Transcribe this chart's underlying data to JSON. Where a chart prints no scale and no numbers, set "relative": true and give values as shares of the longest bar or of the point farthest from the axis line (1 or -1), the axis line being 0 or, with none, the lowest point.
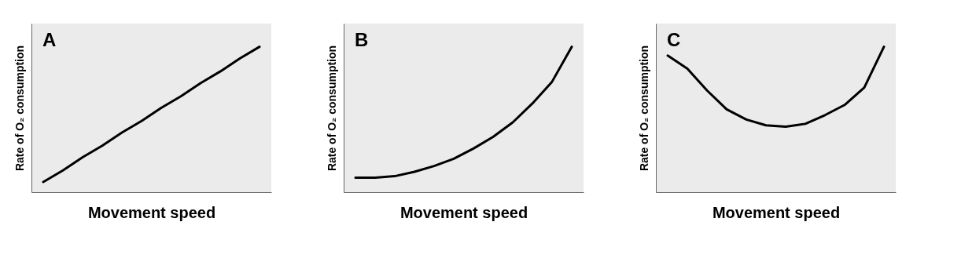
{
  "chart_data": [
    {
      "type": "line",
      "title": "A",
      "xlabel": "Movement speed",
      "ylabel": "Rate of O₂ consumption",
      "relative": true,
      "line_style": "solid",
      "categories": [
        null,
        null,
        null,
        null,
        null,
        null,
        null,
        null,
        null,
        null,
        null,
        null
      ],
      "series": [
        {
          "color": "#000000",
          "values": [
            0.07,
            0.15,
            0.24,
            0.32,
            0.41,
            0.49,
            0.58,
            0.66,
            0.75,
            0.83,
            0.92,
            1.0
          ]
        }
      ]
    },
    {
      "type": "line",
      "title": "B",
      "xlabel": "Movement speed",
      "ylabel": "Rate of O₂ consumption",
      "relative": true,
      "line_style": "solid",
      "categories": [
        null,
        null,
        null,
        null,
        null,
        null,
        null,
        null,
        null,
        null,
        null,
        null
      ],
      "series": [
        {
          "color": "#000000",
          "values": [
            0.1,
            0.1,
            0.11,
            0.14,
            0.18,
            0.23,
            0.3,
            0.38,
            0.48,
            0.61,
            0.76,
            1.0
          ]
        }
      ]
    },
    {
      "type": "line",
      "title": "C",
      "xlabel": "Movement speed",
      "ylabel": "Rate of O₂ consumption",
      "relative": true,
      "line_style": "solid",
      "categories": [
        null,
        null,
        null,
        null,
        null,
        null,
        null,
        null,
        null,
        null,
        null,
        null
      ],
      "series": [
        {
          "color": "#000000",
          "values": [
            0.94,
            0.85,
            0.7,
            0.57,
            0.5,
            0.46,
            0.45,
            0.47,
            0.53,
            0.6,
            0.72,
            1.0
          ]
        }
      ]
    }
  ]
}
